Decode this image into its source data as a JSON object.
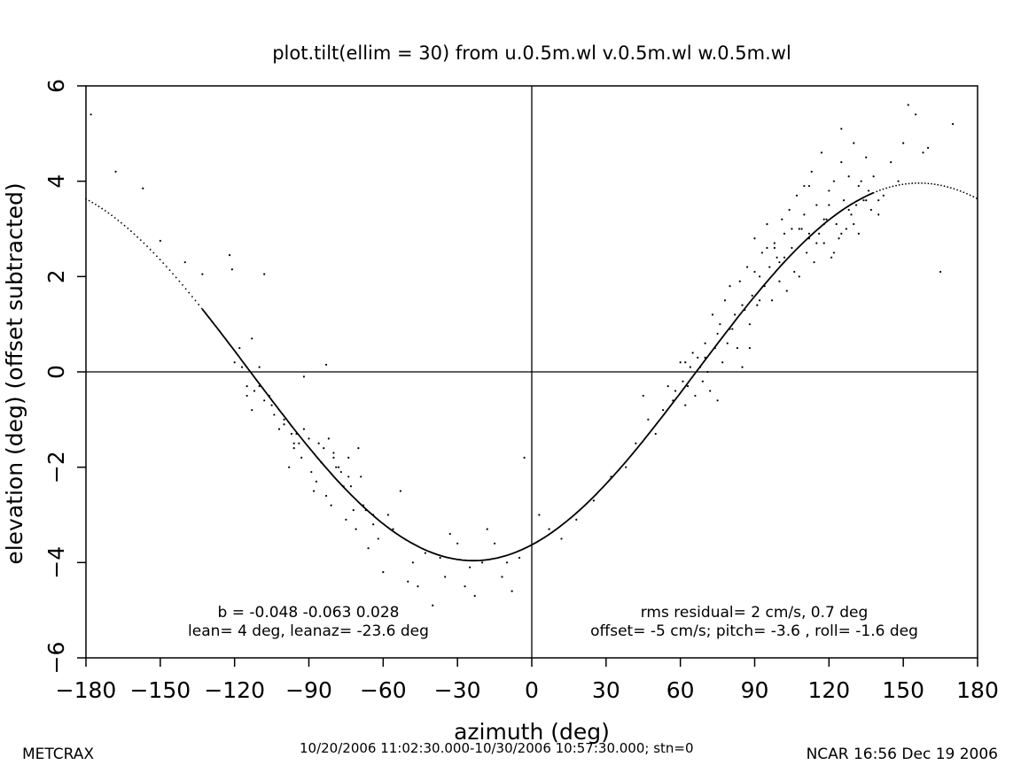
{
  "chart_data": {
    "type": "scatter",
    "title": "plot.tilt(ellim = 30) from u.0.5m.wl v.0.5m.wl w.0.5m.wl",
    "xlabel": "azimuth (deg)",
    "ylabel": "elevation (deg)  (offset subtracted)",
    "xlim": [
      -180,
      180
    ],
    "ylim": [
      -6,
      6
    ],
    "xticks": [
      "-180",
      "-150",
      "-120",
      "-90",
      "-60",
      "-30",
      "0",
      "30",
      "60",
      "90",
      "120",
      "150",
      "180"
    ],
    "yticks": [
      "-6",
      "-4",
      "-2",
      "0",
      "2",
      "4",
      "6"
    ],
    "grid": false,
    "reference_lines": {
      "x": 0,
      "y": 0
    },
    "fit": {
      "amplitude_deg": 3.96,
      "phase_deg": -23.6,
      "solid_range_deg": [
        -133,
        138
      ]
    },
    "annotations": {
      "left_line1": "b = -0.048 -0.063  0.028",
      "left_line2": "lean= 4 deg, leanaz= -23.6 deg",
      "right_line1": "rms residual= 2 cm/s, 0.7 deg",
      "right_line2": "offset= -5 cm/s; pitch= -3.6 , roll= -1.6 deg"
    },
    "series": [
      {
        "x": [
          -178,
          -168,
          -157,
          -150,
          -140,
          -133,
          -122,
          -121,
          -118,
          -113,
          -117,
          -115,
          -112,
          -110,
          -106,
          -104,
          -100,
          -97,
          -96,
          -94,
          -93,
          -92,
          -89,
          -86,
          -83,
          -81,
          -80,
          -79,
          -77,
          -75,
          -74,
          -73,
          -72,
          -71,
          -70,
          -68,
          -66,
          -64,
          -62,
          -60,
          -58,
          -56,
          -53,
          -50,
          -48,
          -46,
          -43,
          -40,
          -37,
          -35,
          -33,
          -30,
          -27,
          -25,
          -23,
          -20,
          -18,
          -15,
          -12,
          -10,
          -8,
          -5,
          -3,
          -96,
          -110,
          -113,
          -100,
          -90,
          -98,
          -85,
          -87,
          -78,
          -82,
          -84,
          -88,
          -76,
          -69,
          -92,
          -105,
          -108,
          -115,
          -102,
          -95,
          -80,
          -74,
          -67,
          -64,
          -108,
          -83,
          -120
        ],
        "y": [
          5.4,
          4.2,
          3.85,
          2.75,
          2.3,
          2.05,
          2.45,
          2.15,
          0.5,
          0.7,
          0.1,
          -0.3,
          -0.4,
          0.1,
          -0.5,
          -0.9,
          -1.1,
          -1.3,
          -1.6,
          -1.5,
          -1.8,
          -1.2,
          -2.1,
          -1.5,
          -2.6,
          -2.8,
          -1.8,
          -2.0,
          -2.1,
          -3.1,
          -2.2,
          -2.4,
          -2.9,
          -3.3,
          -1.6,
          -2.8,
          -3.7,
          -3.2,
          -3.5,
          -4.2,
          -3.0,
          -3.3,
          -2.5,
          -4.4,
          -4.0,
          -4.5,
          -3.8,
          -4.9,
          -3.9,
          -4.3,
          -3.4,
          -3.6,
          -4.5,
          -4.1,
          -4.7,
          -4.0,
          -3.3,
          -3.6,
          -4.3,
          -4.0,
          -4.6,
          -3.9,
          -1.8,
          -1.5,
          -0.3,
          -0.8,
          -1.0,
          -1.4,
          -2.0,
          -1.9,
          -2.3,
          -2.0,
          -1.4,
          -1.6,
          -2.5,
          -2.4,
          -2.2,
          -0.1,
          -0.7,
          -0.6,
          -0.5,
          -1.2,
          -1.3,
          -1.7,
          -1.8,
          -2.9,
          -3.0,
          2.05,
          0.15,
          0.2
        ]
      },
      {
        "x": [
          3,
          7,
          12,
          18,
          25,
          32,
          38,
          42,
          45,
          47,
          50,
          53,
          55,
          57,
          58,
          60,
          61,
          62,
          63,
          64,
          65,
          66,
          67,
          68,
          69,
          70,
          71,
          72,
          73,
          74,
          75,
          76,
          77,
          78,
          79,
          80,
          81,
          82,
          83,
          84,
          85,
          86,
          87,
          88,
          89,
          90,
          91,
          92,
          93,
          94,
          95,
          96,
          97,
          98,
          99,
          100,
          101,
          102,
          103,
          104,
          105,
          106,
          107,
          108,
          109,
          110,
          111,
          112,
          113,
          114,
          115,
          116,
          117,
          118,
          119,
          120,
          121,
          122,
          123,
          124,
          125,
          126,
          127,
          128,
          129,
          130,
          131,
          132,
          133,
          134,
          135,
          136,
          137,
          138,
          140,
          142,
          145,
          148,
          150,
          152,
          155,
          158,
          160,
          165,
          170,
          62,
          70,
          75,
          80,
          85,
          90,
          95,
          100,
          105,
          110,
          115,
          120,
          125,
          130,
          135,
          88,
          92,
          98,
          102,
          108,
          112,
          118,
          122,
          128,
          132,
          140,
          112,
          118,
          125
        ],
        "y": [
          -3.0,
          -3.3,
          -3.5,
          -3.1,
          -2.7,
          -2.2,
          -2.0,
          -1.5,
          -0.5,
          -1.0,
          -1.3,
          -0.8,
          -0.3,
          -0.6,
          -0.4,
          0.2,
          -0.2,
          -0.7,
          -0.3,
          0.1,
          0.4,
          -0.5,
          0.3,
          0.1,
          -0.2,
          0.6,
          0.0,
          -0.4,
          1.2,
          0.5,
          0.8,
          1.0,
          0.2,
          1.5,
          0.6,
          1.8,
          0.9,
          1.2,
          0.5,
          1.9,
          0.1,
          1.3,
          2.2,
          1.0,
          1.6,
          2.8,
          1.4,
          2.0,
          2.5,
          1.8,
          3.1,
          2.2,
          1.5,
          2.7,
          2.4,
          1.9,
          3.2,
          2.9,
          1.7,
          3.4,
          2.6,
          2.1,
          3.7,
          2.0,
          3.0,
          3.9,
          2.5,
          2.8,
          4.2,
          2.3,
          3.5,
          2.9,
          4.6,
          2.7,
          3.2,
          3.8,
          2.4,
          4.0,
          3.1,
          2.8,
          4.4,
          3.6,
          3.0,
          4.1,
          3.3,
          4.8,
          3.5,
          2.9,
          4.0,
          3.6,
          4.5,
          3.8,
          3.4,
          4.1,
          3.3,
          3.7,
          4.4,
          4.0,
          4.8,
          5.6,
          5.4,
          4.6,
          4.7,
          2.1,
          5.2,
          0.2,
          0.3,
          -0.6,
          0.9,
          1.4,
          2.1,
          2.6,
          2.3,
          3.0,
          3.3,
          2.7,
          3.5,
          2.9,
          3.1,
          3.6,
          0.5,
          1.5,
          2.6,
          2.4,
          3.0,
          3.9,
          3.1,
          2.5,
          3.4,
          3.9,
          3.6,
          2.9,
          3.2,
          5.1
        ]
      }
    ]
  },
  "footer": {
    "left": "METCRAX",
    "center": "10/20/2006 11:02:30.000-10/30/2006 10:57:30.000; stn=0",
    "right": "NCAR 16:56 Dec 19 2006"
  }
}
